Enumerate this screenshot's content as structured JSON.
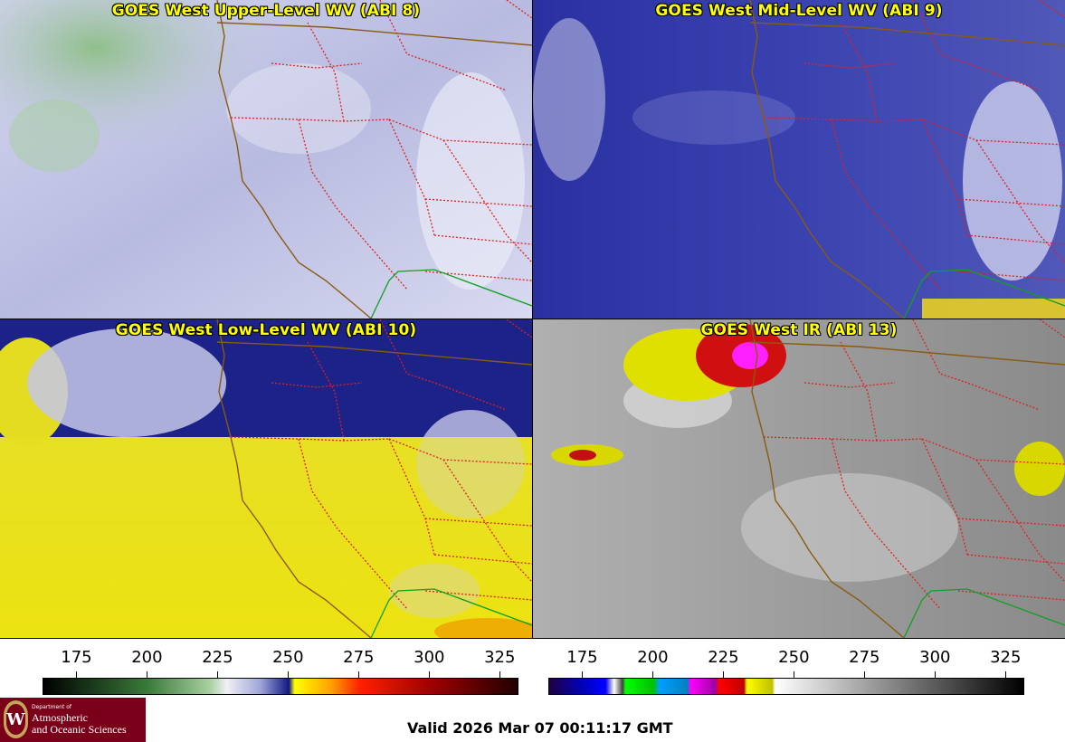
{
  "panels": {
    "upper": {
      "title": "GOES West Upper-Level WV (ABI 8)",
      "base_color": "#c8cae8"
    },
    "mid": {
      "title": "GOES West Mid-Level WV (ABI 9)",
      "base_color": "#3a42a8"
    },
    "low": {
      "title": "GOES West Low-Level WV (ABI 10)",
      "base_color": "#e8e020"
    },
    "ir": {
      "title": "GOES West IR (ABI 13)",
      "base_color": "#a8a8a8"
    }
  },
  "colorbars": {
    "wv": {
      "ticks": [
        "175",
        "200",
        "225",
        "250",
        "275",
        "300",
        "325"
      ],
      "tick_values": [
        175,
        200,
        225,
        250,
        275,
        300,
        325
      ],
      "range": [
        163,
        331
      ],
      "stops": [
        {
          "v": 163,
          "c": "#000000"
        },
        {
          "v": 200,
          "c": "#3a7a3a"
        },
        {
          "v": 222,
          "c": "#a8d0a0"
        },
        {
          "v": 228,
          "c": "#f0f0f4"
        },
        {
          "v": 240,
          "c": "#9ea4d8"
        },
        {
          "v": 250,
          "c": "#101880"
        },
        {
          "v": 252,
          "c": "#ffff00"
        },
        {
          "v": 265,
          "c": "#ffa000"
        },
        {
          "v": 275,
          "c": "#ff2000"
        },
        {
          "v": 300,
          "c": "#a00000"
        },
        {
          "v": 331,
          "c": "#200000"
        }
      ]
    },
    "ir": {
      "ticks": [
        "175",
        "200",
        "225",
        "250",
        "275",
        "300",
        "325"
      ],
      "tick_values": [
        175,
        200,
        225,
        250,
        275,
        300,
        325
      ],
      "range": [
        163,
        331
      ],
      "stops": [
        {
          "v": 163,
          "c": "#200040"
        },
        {
          "v": 175,
          "c": "#0000c0"
        },
        {
          "v": 183,
          "c": "#0000ff"
        },
        {
          "v": 186,
          "c": "#ffffff"
        },
        {
          "v": 189,
          "c": "#404040"
        },
        {
          "v": 190,
          "c": "#00ff00"
        },
        {
          "v": 200,
          "c": "#00c000"
        },
        {
          "v": 202,
          "c": "#00a0ff"
        },
        {
          "v": 212,
          "c": "#0080c0"
        },
        {
          "v": 213,
          "c": "#ff00ff"
        },
        {
          "v": 222,
          "c": "#a000a0"
        },
        {
          "v": 223,
          "c": "#ff0000"
        },
        {
          "v": 232,
          "c": "#c00000"
        },
        {
          "v": 233,
          "c": "#ffff00"
        },
        {
          "v": 242,
          "c": "#c0c000"
        },
        {
          "v": 243,
          "c": "#ffffff"
        },
        {
          "v": 331,
          "c": "#000000"
        }
      ]
    }
  },
  "logo": {
    "seal_letter": "W",
    "small": "Department of",
    "line1": "Atmospheric",
    "line2": "and Oceanic Sciences"
  },
  "valid_time": "Valid 2026 Mar 07 00:11:17 GMT",
  "colors": {
    "state_border": "#e02020",
    "coastline": "#8a5a10",
    "mexico_border": "#10a020"
  }
}
